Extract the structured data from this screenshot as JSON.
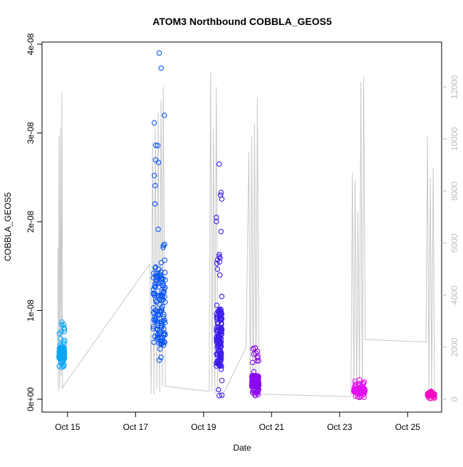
{
  "chart_data": {
    "type": "scatter",
    "title": "ATOM3 Northbound COBBLA_GEOS5",
    "xlabel": "Date",
    "ylabel": "COBBLA_GEOS5",
    "xlim": [
      "2016-10-14 06:00",
      "2016-10-26 00:00"
    ],
    "ylim": [
      0,
      4e-08
    ],
    "y2lim": [
      0,
      12000
    ],
    "x_ticks": [
      {
        "value": "2016-10-15",
        "label": "Oct 15"
      },
      {
        "value": "2016-10-17",
        "label": "Oct 17"
      },
      {
        "value": "2016-10-19",
        "label": "Oct 19"
      },
      {
        "value": "2016-10-21",
        "label": "Oct 21"
      },
      {
        "value": "2016-10-23",
        "label": "Oct 23"
      },
      {
        "value": "2016-10-25",
        "label": "Oct 25"
      }
    ],
    "y_ticks": [
      {
        "value": 0,
        "label": "0e+00"
      },
      {
        "value": 1e-08,
        "label": "1e-08"
      },
      {
        "value": 2e-08,
        "label": "2e-08"
      },
      {
        "value": 3e-08,
        "label": "3e-08"
      },
      {
        "value": 4e-08,
        "label": "4e-08"
      }
    ],
    "y2_ticks": [
      {
        "value": 0,
        "label": "0"
      },
      {
        "value": 2000,
        "label": "2000"
      },
      {
        "value": 4000,
        "label": "4000"
      },
      {
        "value": 6000,
        "label": "6000"
      },
      {
        "value": 8000,
        "label": "8000"
      },
      {
        "value": 10000,
        "label": "10000"
      },
      {
        "value": 12000,
        "label": "12000"
      }
    ],
    "grid": false,
    "legend": "none",
    "colors": {
      "flight_1": "#0aa5f5",
      "flight_2": "#0a55f5",
      "flight_3": "#3a19ee",
      "flight_4": "#8c0aef",
      "flight_5": "#e211ee",
      "flight_6": "#f20ac0",
      "altitude": "#c8c8c8"
    },
    "flights": [
      {
        "start": "2016-10-14 18:00",
        "end": "2016-10-14 22:00",
        "min": 3.6e-09,
        "max": 8.7e-09,
        "mean": 5.2e-09,
        "color": "#0aa5f5"
      },
      {
        "start": "2016-10-17 12:30",
        "end": "2016-10-17 21:00",
        "min": 4.4e-09,
        "max": 3.9e-08,
        "mean": 1.05e-08,
        "color": "#0a55f5"
      },
      {
        "start": "2016-10-19 09:00",
        "end": "2016-10-19 13:00",
        "min": 4e-10,
        "max": 2.65e-08,
        "mean": 7e-09,
        "color": "#3a19ee"
      },
      {
        "start": "2016-10-20 10:00",
        "end": "2016-10-20 15:00",
        "min": 4e-10,
        "max": 5.8e-09,
        "mean": 2e-09,
        "color": "#8c0aef"
      },
      {
        "start": "2016-10-23 10:00",
        "end": "2016-10-23 18:00",
        "min": 2e-10,
        "max": 2.2e-09,
        "mean": 1e-09,
        "color": "#e211ee"
      },
      {
        "start": "2016-10-25 14:00",
        "end": "2016-10-25 19:00",
        "min": 1e-10,
        "max": 9e-10,
        "mean": 5e-10,
        "color": "#f20ac0"
      }
    ],
    "altitude_series": {
      "name": "altitude",
      "points": [
        [
          "2016-10-14 17:00",
          5800
        ],
        [
          "2016-10-14 17:30",
          300
        ],
        [
          "2016-10-14 18:00",
          10100
        ],
        [
          "2016-10-14 18:30",
          400
        ],
        [
          "2016-10-14 19:00",
          10400
        ],
        [
          "2016-10-14 19:30",
          900
        ],
        [
          "2016-10-14 20:00",
          11800
        ],
        [
          "2016-10-14 20:30",
          400
        ],
        [
          "2016-10-14 21:00",
          500
        ],
        [
          "2016-10-17 10:00",
          5200
        ],
        [
          "2016-10-17 11:00",
          200
        ],
        [
          "2016-10-17 12:00",
          9900
        ],
        [
          "2016-10-17 13:00",
          200
        ],
        [
          "2016-10-17 14:00",
          10400
        ],
        [
          "2016-10-17 15:00",
          400
        ],
        [
          "2016-10-17 16:00",
          11000
        ],
        [
          "2016-10-17 17:00",
          300
        ],
        [
          "2016-10-17 18:00",
          11500
        ],
        [
          "2016-10-17 19:00",
          500
        ],
        [
          "2016-10-17 19:30",
          12000
        ],
        [
          "2016-10-17 21:00",
          500
        ],
        [
          "2016-10-19 04:00",
          300
        ],
        [
          "2016-10-19 05:00",
          12600
        ],
        [
          "2016-10-19 06:00",
          300
        ],
        [
          "2016-10-19 07:00",
          10400
        ],
        [
          "2016-10-19 08:00",
          200
        ],
        [
          "2016-10-19 09:00",
          12000
        ],
        [
          "2016-10-19 10:00",
          400
        ],
        [
          "2016-10-19 12:00",
          200
        ],
        [
          "2016-10-19 13:00",
          100
        ],
        [
          "2016-10-20 06:00",
          2000
        ],
        [
          "2016-10-20 08:00",
          9500
        ],
        [
          "2016-10-20 09:00",
          300
        ],
        [
          "2016-10-20 10:00",
          10100
        ],
        [
          "2016-10-20 11:00",
          400
        ],
        [
          "2016-10-20 12:00",
          10600
        ],
        [
          "2016-10-20 13:00",
          300
        ],
        [
          "2016-10-20 14:00",
          11600
        ],
        [
          "2016-10-20 15:00",
          400
        ],
        [
          "2016-10-20 16:00",
          200
        ],
        [
          "2016-10-23 08:00",
          100
        ],
        [
          "2016-10-23 09:00",
          8700
        ],
        [
          "2016-10-23 10:00",
          300
        ],
        [
          "2016-10-23 11:00",
          8400
        ],
        [
          "2016-10-23 12:00",
          400
        ],
        [
          "2016-10-23 13:00",
          7200
        ],
        [
          "2016-10-23 14:00",
          300
        ],
        [
          "2016-10-23 15:00",
          12200
        ],
        [
          "2016-10-23 16:00",
          200
        ],
        [
          "2016-10-23 17:00",
          12400
        ],
        [
          "2016-10-23 18:00",
          2300
        ],
        [
          "2016-10-25 13:00",
          2200
        ],
        [
          "2016-10-25 14:00",
          10100
        ],
        [
          "2016-10-25 15:00",
          400
        ],
        [
          "2016-10-25 16:00",
          8500
        ],
        [
          "2016-10-25 17:00",
          300
        ],
        [
          "2016-10-25 18:00",
          8900
        ],
        [
          "2016-10-25 19:00",
          200
        ],
        [
          "2016-10-25 20:00",
          100
        ]
      ]
    }
  }
}
